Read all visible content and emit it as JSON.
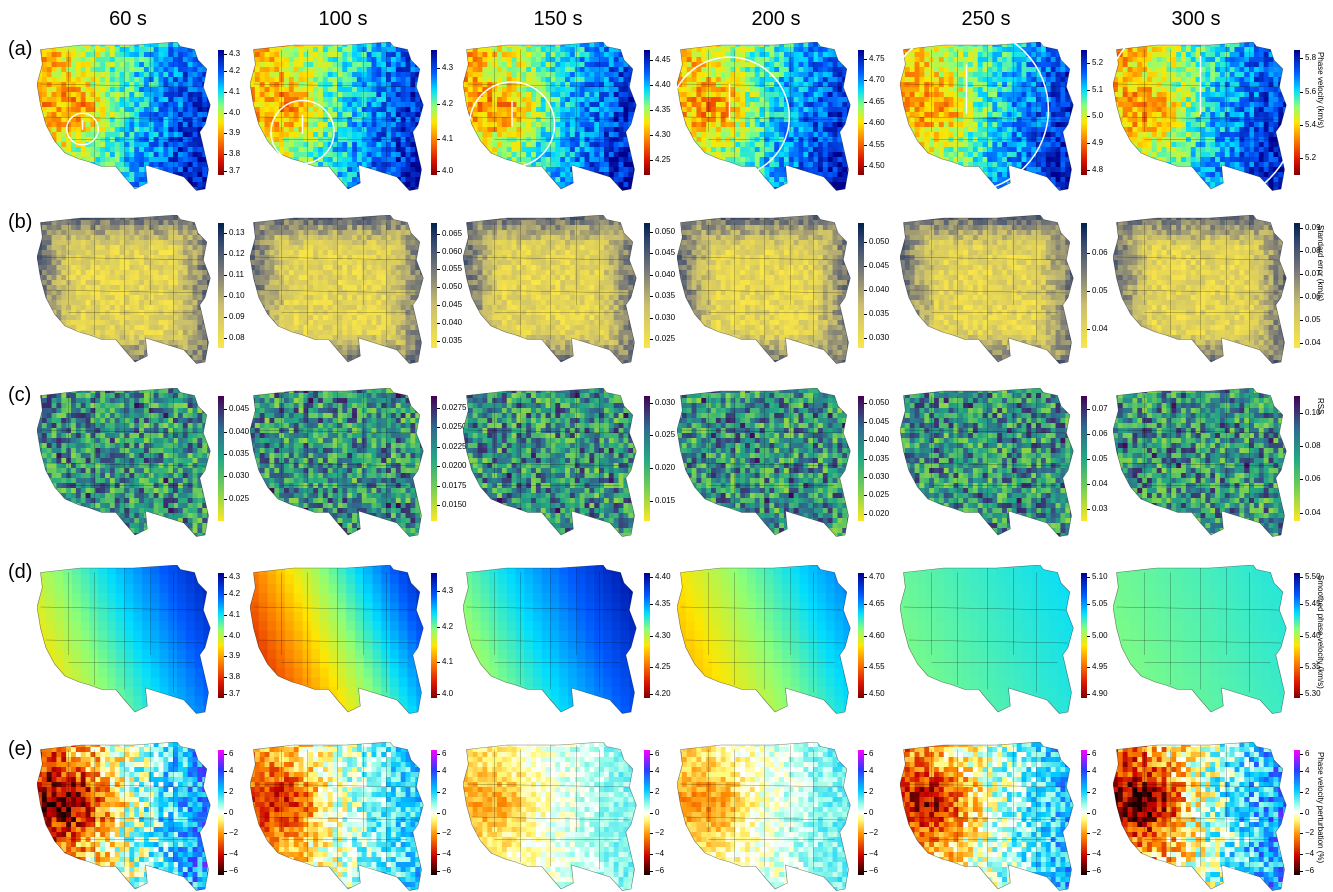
{
  "chart_data": {
    "type": "heatmap",
    "periods": [
      "60 s",
      "100 s",
      "150 s",
      "200 s",
      "250 s",
      "300 s"
    ],
    "rows": [
      {
        "label": "(a)",
        "colorbar_title": "Phase velocity (km/s)",
        "cmap": "jet_r",
        "panels": [
          {
            "ticks": [
              "4.3",
              "4.2",
              "4.1",
              "4.0",
              "3.9",
              "3.8",
              "3.7"
            ],
            "range": [
              3.7,
              4.3
            ],
            "circle": true
          },
          {
            "ticks": [
              "4.3",
              "4.2",
              "4.1",
              "4.0"
            ],
            "range": [
              4.0,
              4.35
            ],
            "circle": true
          },
          {
            "ticks": [
              "4.45",
              "4.40",
              "4.35",
              "4.30",
              "4.25"
            ],
            "range": [
              4.22,
              4.47
            ],
            "circle": true
          },
          {
            "ticks": [
              "4.75",
              "4.70",
              "4.65",
              "4.60",
              "4.55",
              "4.50"
            ],
            "range": [
              4.48,
              4.77
            ],
            "circle": true
          },
          {
            "ticks": [
              "5.2",
              "5.1",
              "5.0",
              "4.9",
              "4.8"
            ],
            "range": [
              4.78,
              5.25
            ],
            "circle": true
          },
          {
            "ticks": [
              "5.8",
              "5.6",
              "5.4",
              "5.2"
            ],
            "range": [
              5.1,
              5.85
            ],
            "circle": true
          }
        ]
      },
      {
        "label": "(b)",
        "colorbar_title": "Standard error (km/s)",
        "cmap": "cividis_r",
        "panels": [
          {
            "ticks": [
              "0.13",
              "0.12",
              "0.11",
              "0.10",
              "0.09",
              "0.08"
            ],
            "range": [
              0.075,
              0.135
            ]
          },
          {
            "ticks": [
              "0.065",
              "0.060",
              "0.055",
              "0.050",
              "0.045",
              "0.040",
              "0.035"
            ],
            "range": [
              0.033,
              0.068
            ]
          },
          {
            "ticks": [
              "0.050",
              "0.045",
              "0.040",
              "0.035",
              "0.030",
              "0.025"
            ],
            "range": [
              0.023,
              0.052
            ]
          },
          {
            "ticks": [
              "0.050",
              "0.045",
              "0.040",
              "0.035",
              "0.030"
            ],
            "range": [
              0.028,
              0.054
            ]
          },
          {
            "ticks": [
              "0.06",
              "0.05",
              "0.04"
            ],
            "range": [
              0.035,
              0.068
            ]
          },
          {
            "ticks": [
              "0.09",
              "0.08",
              "0.07",
              "0.06",
              "0.05",
              "0.04"
            ],
            "range": [
              0.038,
              0.092
            ]
          }
        ]
      },
      {
        "label": "(c)",
        "colorbar_title": "RSS",
        "cmap": "viridis_r",
        "panels": [
          {
            "ticks": [
              "0.045",
              "0.040",
              "0.035",
              "0.030",
              "0.025"
            ],
            "range": [
              0.02,
              0.048
            ]
          },
          {
            "ticks": [
              "0.0275",
              "0.0250",
              "0.0225",
              "0.0200",
              "0.0175",
              "0.0150"
            ],
            "range": [
              0.013,
              0.029
            ]
          },
          {
            "ticks": [
              "0.030",
              "0.025",
              "0.020",
              "0.015"
            ],
            "range": [
              0.012,
              0.031
            ]
          },
          {
            "ticks": [
              "0.050",
              "0.045",
              "0.040",
              "0.035",
              "0.030",
              "0.025",
              "0.020"
            ],
            "range": [
              0.018,
              0.052
            ]
          },
          {
            "ticks": [
              "0.07",
              "0.06",
              "0.05",
              "0.04",
              "0.03"
            ],
            "range": [
              0.025,
              0.075
            ]
          },
          {
            "ticks": [
              "0.10",
              "0.08",
              "0.06",
              "0.04"
            ],
            "range": [
              0.035,
              0.11
            ]
          }
        ]
      },
      {
        "label": "(d)",
        "colorbar_title": "Smoothed phase velocity (km/s)",
        "cmap": "jet_r",
        "panels": [
          {
            "ticks": [
              "4.3",
              "4.2",
              "4.1",
              "4.0",
              "3.9",
              "3.8",
              "3.7"
            ],
            "range": [
              3.7,
              4.3
            ],
            "grad": [
              0.35,
              0.95
            ]
          },
          {
            "ticks": [
              "4.3",
              "4.2",
              "4.1",
              "4.0"
            ],
            "range": [
              4.0,
              4.35
            ],
            "grad": [
              0.05,
              0.95
            ]
          },
          {
            "ticks": [
              "4.40",
              "4.35",
              "4.30",
              "4.25",
              "4.20"
            ],
            "range": [
              4.2,
              4.4
            ],
            "grad": [
              0.45,
              0.98
            ]
          },
          {
            "ticks": [
              "4.70",
              "4.65",
              "4.60",
              "4.55",
              "4.50"
            ],
            "range": [
              4.5,
              4.7
            ],
            "grad": [
              0.3,
              0.8
            ]
          },
          {
            "ticks": [
              "5.10",
              "5.05",
              "5.00",
              "4.95",
              "4.90"
            ],
            "range": [
              4.9,
              5.1
            ],
            "grad": [
              0.55,
              0.68
            ]
          },
          {
            "ticks": [
              "5.50",
              "5.45",
              "5.40",
              "5.35",
              "5.30"
            ],
            "range": [
              5.3,
              5.5
            ],
            "grad": [
              0.55,
              0.65
            ]
          }
        ]
      },
      {
        "label": "(e)",
        "colorbar_title": "Phase velocity perturbation (%)",
        "cmap": "seismic_custom",
        "panels": [
          {
            "ticks": [
              "6",
              "4",
              "2",
              "0",
              "−2",
              "−4",
              "−6"
            ],
            "range": [
              -6,
              6
            ],
            "amp": 1.0
          },
          {
            "ticks": [
              "6",
              "4",
              "2",
              "0",
              "−2",
              "−4",
              "−6"
            ],
            "range": [
              -6,
              6
            ],
            "amp": 0.7
          },
          {
            "ticks": [
              "6",
              "4",
              "2",
              "0",
              "−2",
              "−4",
              "−6"
            ],
            "range": [
              -6,
              6
            ],
            "amp": 0.35
          },
          {
            "ticks": [
              "6",
              "4",
              "2",
              "0",
              "−2",
              "−4",
              "−6"
            ],
            "range": [
              -6,
              6
            ],
            "amp": 0.4
          },
          {
            "ticks": [
              "6",
              "4",
              "2",
              "0",
              "−2",
              "−4",
              "−6"
            ],
            "range": [
              -6,
              6
            ],
            "amp": 0.8
          },
          {
            "ticks": [
              "6",
              "4",
              "2",
              "0",
              "−2",
              "−4",
              "−6"
            ],
            "range": [
              -6,
              6
            ],
            "amp": 1.0
          }
        ]
      }
    ]
  }
}
